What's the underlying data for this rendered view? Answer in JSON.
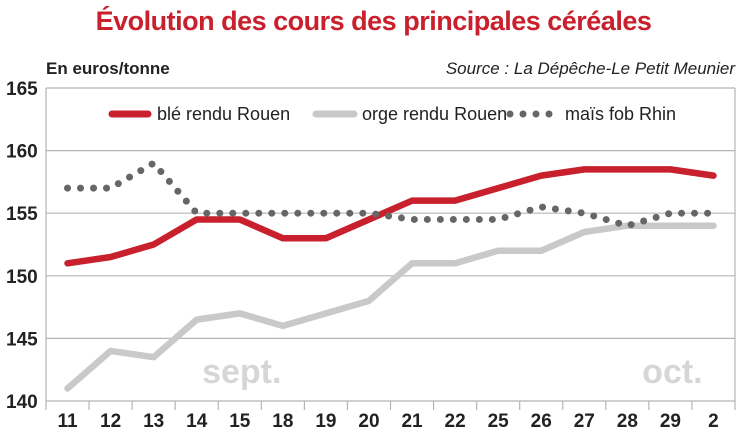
{
  "chart_data": {
    "type": "line",
    "title": "Évolution des cours des principales céréales",
    "ylabel": "En euros/tonne",
    "source": "Source : La Dépêche-Le Petit Meunier",
    "categories": [
      "11",
      "12",
      "13",
      "14",
      "15",
      "18",
      "19",
      "20",
      "21",
      "22",
      "25",
      "26",
      "27",
      "28",
      "29",
      "2"
    ],
    "ylim": [
      140,
      165
    ],
    "yticks": [
      140,
      145,
      150,
      155,
      160,
      165
    ],
    "grid": true,
    "legend_position": "top",
    "month_labels": [
      {
        "text": "sept.",
        "at": "15"
      },
      {
        "text": "oct.",
        "at": "29"
      }
    ],
    "series": [
      {
        "name": "blé rendu Rouen",
        "color": "#c8202c",
        "style": "solid",
        "values": [
          151,
          151.5,
          152.5,
          154.5,
          154.5,
          153,
          153,
          154.5,
          156,
          156,
          157,
          158,
          158.5,
          158.5,
          158.5,
          158
        ]
      },
      {
        "name": "orge rendu Rouen",
        "color": "#c9c9c9",
        "style": "solid",
        "values": [
          141,
          144,
          143.5,
          146.5,
          147,
          146,
          147,
          148,
          151,
          151,
          152,
          152,
          153.5,
          154,
          154,
          154
        ]
      },
      {
        "name": "maïs fob Rhin",
        "color": "#666666",
        "style": "dotted",
        "values": [
          157,
          157,
          159,
          155,
          155,
          155,
          155,
          155,
          154.5,
          154.5,
          154.5,
          155.5,
          155,
          154,
          155,
          155
        ]
      }
    ]
  },
  "colors": {
    "title": "#c8202c",
    "grid": "#b5b5b5",
    "month_label": "#d6d6d6"
  }
}
